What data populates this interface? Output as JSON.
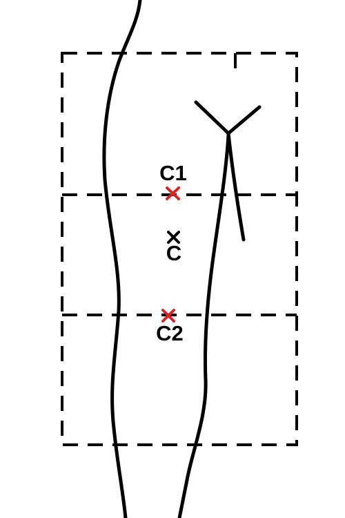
{
  "colors": {
    "line": "#000000",
    "marker_red": "#e02020",
    "marker_black": "#000000",
    "background": "#ffffff"
  },
  "points": [
    {
      "label": "C1",
      "color": "red"
    },
    {
      "label": "C",
      "color": "black"
    },
    {
      "label": "C2",
      "color": "red"
    }
  ]
}
